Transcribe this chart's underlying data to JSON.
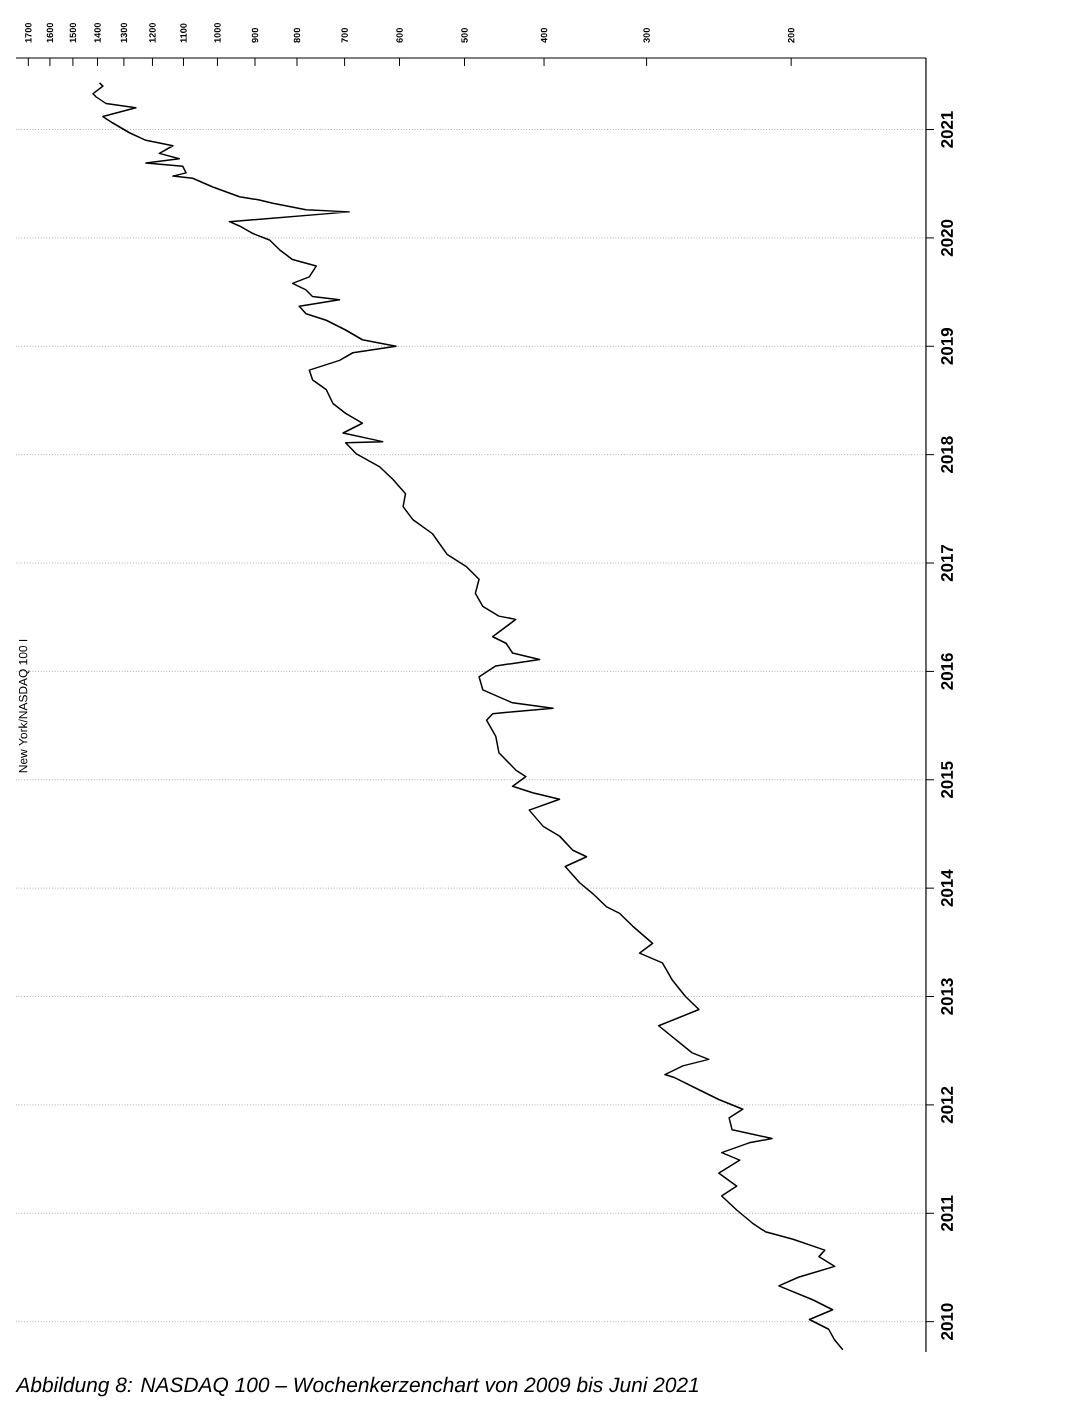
{
  "chart_data": {
    "type": "line",
    "orientation": "horizontal",
    "annotations": [
      "New York/NASDAQ 100 I",
      "Abbildung 8: NASDAQ 100 – Wochenkerzenchart von 2009 bis Juni 2021"
    ],
    "x": [
      2009.74,
      2009.83,
      2009.93,
      2010.02,
      2010.11,
      2010.2,
      2010.33,
      2010.41,
      2010.51,
      2010.6,
      2010.66,
      2010.76,
      2010.83,
      2010.91,
      2011.03,
      2011.16,
      2011.25,
      2011.37,
      2011.49,
      2011.56,
      2011.65,
      2011.69,
      2011.77,
      2011.88,
      2011.96,
      2012.05,
      2012.14,
      2012.25,
      2012.28,
      2012.36,
      2012.42,
      2012.48,
      2012.73,
      2012.88,
      2013.0,
      2013.15,
      2013.31,
      2013.4,
      2013.49,
      2013.65,
      2013.77,
      2013.83,
      2013.95,
      2014.05,
      2014.2,
      2014.29,
      2014.35,
      2014.48,
      2014.57,
      2014.72,
      2014.82,
      2014.88,
      2014.94,
      2015.03,
      2015.09,
      2015.25,
      2015.4,
      2015.55,
      2015.61,
      2015.66,
      2015.71,
      2015.83,
      2015.95,
      2016.05,
      2016.11,
      2016.17,
      2016.26,
      2016.32,
      2016.48,
      2016.51,
      2016.6,
      2016.72,
      2016.85,
      2016.97,
      2017.08,
      2017.27,
      2017.4,
      2017.52,
      2017.64,
      2017.77,
      2017.89,
      2018.01,
      2018.11,
      2018.12,
      2018.2,
      2018.29,
      2018.38,
      2018.47,
      2018.6,
      2018.69,
      2018.78,
      2018.87,
      2018.94,
      2019.0,
      2019.06,
      2019.15,
      2019.24,
      2019.3,
      2019.37,
      2019.43,
      2019.46,
      2019.52,
      2019.58,
      2019.64,
      2019.74,
      2019.8,
      2019.89,
      2019.98,
      2020.04,
      2020.11,
      2020.15,
      2020.24,
      2020.26,
      2020.32,
      2020.35,
      2020.38,
      2020.47,
      2020.55,
      2020.57,
      2020.6,
      2020.66,
      2020.69,
      2020.73,
      2020.78,
      2020.85,
      2020.9,
      2020.97,
      2021.06,
      2021.12,
      2021.2,
      2021.24,
      2021.3,
      2021.33,
      2021.4,
      2021.43
    ],
    "values": [
      173,
      177,
      180,
      190,
      178,
      188,
      207,
      196,
      177,
      185,
      182,
      199,
      215,
      223,
      233,
      243,
      233,
      245,
      231,
      243,
      225,
      211,
      236,
      238,
      229,
      245,
      259,
      277,
      285,
      271,
      252,
      264,
      290,
      259,
      269,
      279,
      287,
      306,
      295,
      312,
      324,
      336,
      349,
      362,
      377,
      355,
      369,
      383,
      401,
      417,
      383,
      413,
      437,
      421,
      433,
      454,
      458,
      470,
      462,
      390,
      437,
      475,
      480,
      458,
      405,
      437,
      445,
      462,
      433,
      454,
      475,
      485,
      480,
      498,
      525,
      547,
      578,
      594,
      590,
      611,
      635,
      678,
      698,
      629,
      703,
      666,
      698,
      723,
      737,
      766,
      773,
      710,
      684,
      606,
      666,
      698,
      737,
      780,
      795,
      710,
      766,
      780,
      810,
      773,
      758,
      810,
      840,
      864,
      905,
      940,
      967,
      691,
      780,
      856,
      889,
      940,
      1013,
      1072,
      1133,
      1092,
      1102,
      1222,
      1113,
      1177,
      1133,
      1222,
      1280,
      1341,
      1379,
      1257,
      1367,
      1405,
      1418,
      1379,
      1392
    ],
    "color": "#000000",
    "xlim": [
      1760,
      137
    ],
    "xticks": [
      1700,
      1600,
      1500,
      1400,
      1300,
      1200,
      1100,
      1000,
      900,
      800,
      700,
      600,
      500,
      400,
      300,
      200
    ],
    "log": "x",
    "ylim": [
      2009.72,
      2021.66
    ],
    "yticks": [
      2010,
      2011,
      2012,
      2013,
      2014,
      2015,
      2016,
      2017,
      2018,
      2019,
      2020,
      2021
    ],
    "grid": "y"
  }
}
